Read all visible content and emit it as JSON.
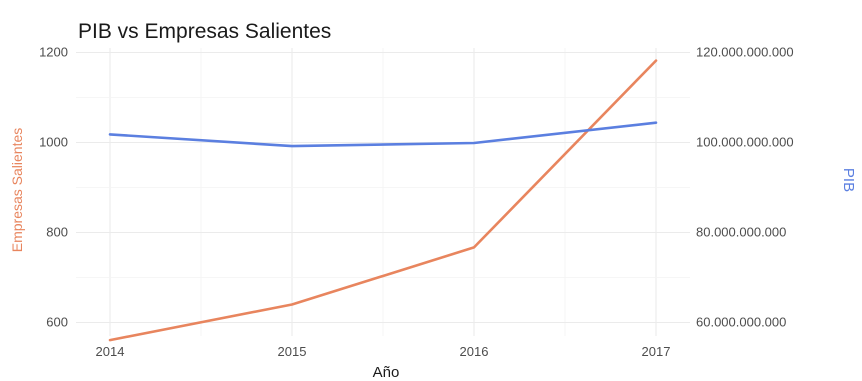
{
  "chart_data": {
    "type": "line",
    "title": "PIB vs Empresas Salientes",
    "xlabel": "Año",
    "ylabel_left": "Empresas Salientes",
    "ylabel_right": "PIB",
    "x": [
      2014,
      2015,
      2016,
      2017
    ],
    "x_tick_labels": [
      "2014",
      "2015",
      "2016",
      "2017"
    ],
    "y_left_ticks": [
      600,
      800,
      1000,
      1200
    ],
    "y_left_tick_labels": [
      "600",
      "800",
      "1000",
      "1200"
    ],
    "y_left_lim": [
      570,
      1210
    ],
    "y_right_ticks": [
      60000000000,
      80000000000,
      100000000000,
      120000000000
    ],
    "y_right_tick_labels": [
      "60.000.000.000",
      "80.000.000.000",
      "100.000.000.000",
      "120.000.000.000"
    ],
    "y_right_lim": [
      57000000000,
      121000000000
    ],
    "grid": true,
    "legend": "none",
    "series": [
      {
        "axis": "left",
        "color": "#e8855e",
        "values": [
          561,
          640,
          767,
          1182
        ]
      },
      {
        "axis": "right",
        "color": "#5b7fe0",
        "values": [
          101800000000,
          99200000000,
          99900000000,
          104400000000
        ]
      }
    ]
  }
}
